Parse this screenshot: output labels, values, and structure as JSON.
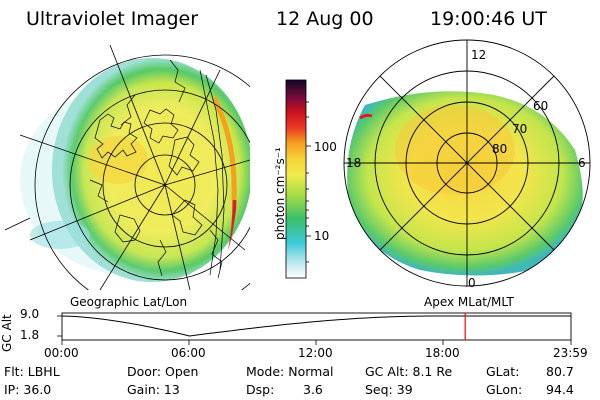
{
  "header": {
    "title": "Ultraviolet Imager",
    "date": "12 Aug 00",
    "time": "19:00:46 UT"
  },
  "colorbar": {
    "unit_label": "photon cm⁻²s⁻¹",
    "tick_high": "100",
    "tick_low": "10"
  },
  "left_panel": {
    "label": "Geographic Lat/Lon"
  },
  "right_panel": {
    "label": "Apex  MLat/MLT",
    "mlt_top": "12",
    "mlt_left": "18",
    "mlt_right": "6",
    "mlt_bottom": "0",
    "lat_60": "60",
    "lat_70": "70",
    "lat_80": "80"
  },
  "altitude_plot": {
    "ylabel": "GC Alt",
    "y_high": "9.0",
    "y_low": "1.8",
    "x_ticks": [
      "00:00",
      "06:00",
      "12:00",
      "18:00",
      "23:59"
    ],
    "current_time_fraction": 0.7922,
    "altitude_min_time_fraction": 0.25,
    "accent_color": "#ff0000"
  },
  "info": {
    "flt": "Flt: LBHL",
    "ip": "IP: 36.0",
    "door": "Door: Open",
    "gain": "Gain: 13",
    "mode": "Mode: Normal",
    "dsp_label": "Dsp:",
    "dsp_value": "3.6",
    "gcalt": "GC Alt: 8.1 Re",
    "seq": "Seq: 39",
    "glat_label": "GLat:",
    "glat_value": "80.7",
    "glon_label": "GLon:",
    "glon_value": "94.4"
  }
}
